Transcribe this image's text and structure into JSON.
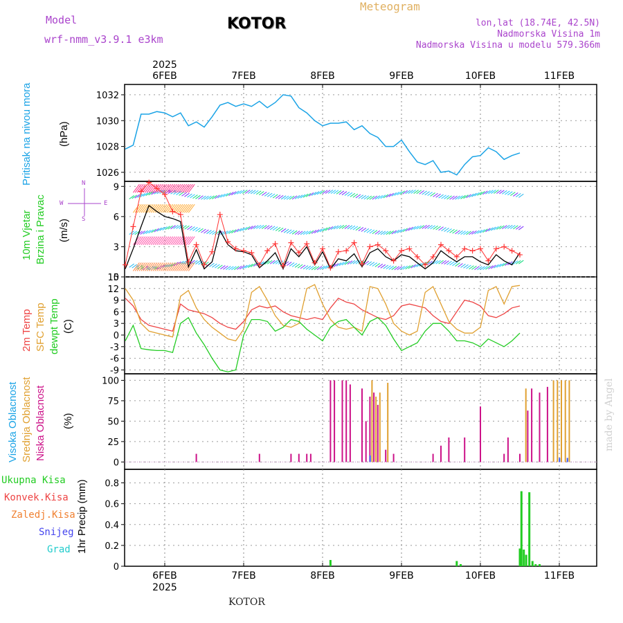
{
  "header": {
    "model_label": "Model",
    "model_name": "wrf-nmm_v3.9.1 e3km",
    "station": "KOTOR",
    "meteogram": "Meteogram",
    "lonlat": "lon,lat (18.74E, 42.5N)",
    "elev": "Nadmorska Visina 1m",
    "elev_model": "Nadmorska Visina u modelu 579.366m",
    "footer_station": "KOTOR",
    "credit": "made by Angel"
  },
  "colors": {
    "pressure": "#1aa3e6",
    "wind_mean": "#000000",
    "gust": "#ff3333",
    "t2m": "#ee4444",
    "sfc": "#e0a030",
    "dew": "#22cc22",
    "low_cloud": "#cc1188",
    "mid_cloud": "#e0a030",
    "high_cloud": "#3355ff",
    "precip": "#22cc22"
  },
  "axes": {
    "year": "2025",
    "dates": [
      "6FEB",
      "7FEB",
      "8FEB",
      "9FEB",
      "10FEB",
      "11FEB"
    ]
  },
  "panels": {
    "pressure": {
      "label": "Pritisak na nivou mora",
      "unit": "(hPa)",
      "ticks": [
        "1026",
        "1028",
        "1030",
        "1032"
      ]
    },
    "wind": {
      "label1": "10m Vjetar",
      "label2": "Brzina i Pravac",
      "unit": "(m/s)",
      "ticks": [
        "0",
        "3",
        "6",
        "9"
      ],
      "compass": {
        "n": "N",
        "s": "S",
        "e": "E",
        "w": "W"
      }
    },
    "temp": {
      "label1": "2m Temp",
      "label2": "SFC Temp",
      "label3": "dewpt Temp",
      "unit": "(C)",
      "ticks": [
        "-9",
        "-6",
        "-3",
        "0",
        "3",
        "6",
        "9",
        "12",
        "15"
      ]
    },
    "cloud": {
      "label1": "Visoka Oblacnost",
      "label2": "Srednja Oblacnost",
      "label3": "Niska Oblacnost",
      "unit": "(%)",
      "ticks": [
        "0",
        "25",
        "50",
        "75",
        "100"
      ]
    },
    "precip": {
      "labels": [
        "Ukupna Kisa",
        "Konvek.Kisa",
        "Zaledj.Kisa",
        "Snijeg",
        "Grad"
      ],
      "unit": "1hr Precip (mm)",
      "ticks": [
        "0",
        "0.2",
        "0.4",
        "0.6",
        "0.8"
      ]
    }
  },
  "chart_data": [
    {
      "type": "line",
      "title": "Pritisak na nivou mora",
      "ylabel": "(hPa)",
      "ylim": [
        1025.3,
        1032.8
      ],
      "x_unit": "days from 5FEB 00UTC",
      "series": [
        {
          "name": "Pritisak na nivou mora",
          "x": [
            0.5,
            0.6,
            0.7,
            0.8,
            0.9,
            1.0,
            1.1,
            1.2,
            1.3,
            1.4,
            1.5,
            1.6,
            1.7,
            1.8,
            1.9,
            2.0,
            2.1,
            2.2,
            2.3,
            2.4,
            2.5,
            2.6,
            2.7,
            2.8,
            2.9,
            3.0,
            3.1,
            3.2,
            3.3,
            3.4,
            3.5,
            3.6,
            3.7,
            3.8,
            3.9,
            4.0,
            4.1,
            4.2,
            4.3,
            4.4,
            4.5,
            4.6,
            4.7,
            4.8,
            4.9,
            5.0,
            5.1,
            5.2,
            5.3,
            5.4,
            5.5
          ],
          "values": [
            1027.8,
            1028.1,
            1030.5,
            1030.5,
            1030.7,
            1030.6,
            1030.3,
            1030.6,
            1029.6,
            1029.9,
            1029.5,
            1030.3,
            1031.2,
            1031.4,
            1031.1,
            1031.3,
            1031.1,
            1031.5,
            1031.0,
            1031.4,
            1032.0,
            1031.9,
            1031.0,
            1030.6,
            1030.0,
            1029.6,
            1029.8,
            1029.8,
            1029.9,
            1029.3,
            1029.6,
            1029.0,
            1028.7,
            1028.0,
            1028.0,
            1028.5,
            1027.6,
            1026.8,
            1026.6,
            1026.9,
            1026.0,
            1026.1,
            1025.8,
            1026.6,
            1027.2,
            1027.3,
            1027.9,
            1027.6,
            1027.0,
            1027.3,
            1027.5
          ]
        }
      ]
    },
    {
      "type": "line",
      "title": "10m Vjetar Brzina i Pravac",
      "ylabel": "(m/s)",
      "ylim": [
        0,
        9.5
      ],
      "series": [
        {
          "name": "mean",
          "x": [
            0.5,
            0.6,
            0.7,
            0.8,
            0.9,
            1.0,
            1.1,
            1.2,
            1.3,
            1.4,
            1.5,
            1.6,
            1.7,
            1.8,
            1.9,
            2.0,
            2.1,
            2.2,
            2.3,
            2.4,
            2.5,
            2.6,
            2.7,
            2.8,
            2.9,
            3.0,
            3.1,
            3.2,
            3.3,
            3.4,
            3.5,
            3.6,
            3.7,
            3.8,
            3.9,
            4.0,
            4.1,
            4.2,
            4.3,
            4.4,
            4.5,
            4.6,
            4.7,
            4.8,
            4.9,
            5.0,
            5.1,
            5.2,
            5.3,
            5.4,
            5.5
          ],
          "values": [
            0.8,
            2.8,
            5.0,
            7.1,
            6.5,
            6.0,
            5.8,
            5.5,
            1.0,
            2.7,
            0.8,
            1.5,
            4.6,
            3.2,
            2.6,
            2.5,
            2.2,
            0.9,
            1.6,
            2.4,
            0.8,
            2.8,
            2.0,
            3.0,
            1.2,
            2.5,
            0.8,
            1.8,
            1.6,
            2.3,
            1.0,
            2.4,
            2.8,
            2.0,
            1.6,
            2.2,
            2.0,
            1.4,
            0.8,
            1.4,
            2.6,
            2.0,
            1.5,
            2.0,
            2.0,
            1.5,
            1.2,
            2.2,
            1.6,
            1.2,
            2.4
          ]
        },
        {
          "name": "gust",
          "x": [
            0.5,
            0.6,
            0.7,
            0.8,
            0.9,
            1.0,
            1.1,
            1.2,
            1.3,
            1.4,
            1.5,
            1.6,
            1.7,
            1.8,
            1.9,
            2.0,
            2.1,
            2.2,
            2.3,
            2.4,
            2.5,
            2.6,
            2.7,
            2.8,
            2.9,
            3.0,
            3.1,
            3.2,
            3.3,
            3.4,
            3.5,
            3.6,
            3.7,
            3.8,
            3.9,
            4.0,
            4.1,
            4.2,
            4.3,
            4.4,
            4.5,
            4.6,
            4.7,
            4.8,
            4.9,
            5.0,
            5.1,
            5.2,
            5.3,
            5.4,
            5.5
          ],
          "values": [
            1.2,
            5.0,
            8.5,
            9.4,
            8.8,
            8.2,
            6.5,
            6.2,
            1.5,
            3.2,
            1.2,
            2.5,
            6.2,
            3.5,
            2.8,
            2.6,
            2.4,
            1.2,
            2.6,
            3.3,
            1.1,
            3.4,
            2.4,
            3.3,
            1.4,
            2.8,
            0.9,
            2.5,
            2.6,
            3.4,
            1.3,
            3.0,
            3.2,
            2.6,
            1.6,
            2.6,
            2.8,
            2.0,
            1.2,
            2.0,
            3.2,
            2.6,
            2.0,
            2.8,
            2.6,
            2.8,
            1.6,
            2.8,
            3.0,
            2.6,
            2.2
          ]
        }
      ]
    },
    {
      "type": "line",
      "title": "2m Temp / SFC Temp / dewpt Temp",
      "ylabel": "(C)",
      "ylim": [
        -10,
        15
      ],
      "x": [
        0.5,
        0.6,
        0.7,
        0.8,
        0.9,
        1.0,
        1.1,
        1.2,
        1.3,
        1.4,
        1.5,
        1.6,
        1.7,
        1.8,
        1.9,
        2.0,
        2.1,
        2.2,
        2.3,
        2.4,
        2.5,
        2.6,
        2.7,
        2.8,
        2.9,
        3.0,
        3.1,
        3.2,
        3.3,
        3.4,
        3.5,
        3.6,
        3.7,
        3.8,
        3.9,
        4.0,
        4.1,
        4.2,
        4.3,
        4.4,
        4.5,
        4.6,
        4.7,
        4.8,
        4.9,
        5.0,
        5.1,
        5.2,
        5.3,
        5.4,
        5.5
      ],
      "series": [
        {
          "name": "2m Temp",
          "values": [
            9.5,
            7.5,
            4.0,
            2.5,
            2.0,
            1.5,
            1.0,
            8.0,
            6.5,
            6.0,
            5.5,
            4.5,
            3.0,
            2.0,
            1.5,
            3.5,
            6.5,
            7.5,
            7.0,
            7.5,
            6.0,
            5.0,
            4.5,
            4.0,
            4.5,
            4.0,
            7.0,
            9.5,
            8.5,
            8.0,
            6.5,
            5.5,
            4.5,
            4.0,
            5.0,
            7.5,
            8.0,
            7.5,
            7.0,
            5.0,
            3.5,
            3.0,
            6.0,
            9.0,
            8.5,
            7.5,
            5.0,
            4.5,
            5.5,
            7.0,
            7.5
          ]
        },
        {
          "name": "SFC Temp",
          "values": [
            12.0,
            9.0,
            3.0,
            1.0,
            0.5,
            0.0,
            -0.5,
            10.0,
            11.5,
            7.0,
            4.0,
            2.0,
            0.5,
            -1.0,
            -1.5,
            1.5,
            11.0,
            12.5,
            9.0,
            5.0,
            2.5,
            2.0,
            3.0,
            12.0,
            13.0,
            8.0,
            4.0,
            2.0,
            1.5,
            2.0,
            1.0,
            12.5,
            12.0,
            8.0,
            3.0,
            1.0,
            0.0,
            1.0,
            11.0,
            12.5,
            8.0,
            3.5,
            1.5,
            0.5,
            0.5,
            2.0,
            11.5,
            12.5,
            8.0,
            12.5,
            12.8
          ]
        },
        {
          "name": "dewpt Temp",
          "values": [
            -1.5,
            2.5,
            -3.5,
            -3.8,
            -4.0,
            -4.0,
            -4.5,
            3.0,
            4.5,
            0.5,
            -2.5,
            -6.0,
            -9.0,
            -9.5,
            -9.0,
            0.0,
            4.0,
            4.0,
            3.5,
            1.0,
            2.0,
            4.0,
            3.5,
            1.5,
            0.0,
            -1.5,
            2.0,
            3.5,
            4.0,
            2.0,
            0.0,
            3.5,
            4.5,
            2.5,
            -1.0,
            -4.0,
            -3.0,
            -2.0,
            1.0,
            3.0,
            3.0,
            1.0,
            -1.5,
            -1.5,
            -2.0,
            -3.0,
            -1.0,
            -2.0,
            -3.0,
            -1.5,
            0.5
          ]
        }
      ]
    },
    {
      "type": "bar",
      "title": "Visoka / Srednja / Niska Oblacnost",
      "ylabel": "(%)",
      "ylim": [
        0,
        100
      ],
      "series": [
        {
          "name": "Niska Oblacnost",
          "x": [
            1.4,
            2.2,
            2.6,
            2.7,
            2.8,
            2.85,
            3.1,
            3.15,
            3.25,
            3.3,
            3.35,
            3.5,
            3.55,
            3.6,
            3.65,
            3.7,
            3.8,
            3.9,
            4.4,
            4.5,
            4.6,
            4.8,
            5.0,
            5.3,
            5.35,
            5.5,
            5.6,
            5.65,
            5.75,
            5.85
          ],
          "values": [
            10,
            10,
            10,
            10,
            10,
            10,
            100,
            100,
            100,
            100,
            95,
            90,
            50,
            80,
            85,
            70,
            15,
            10,
            10,
            20,
            30,
            30,
            68,
            10,
            30,
            10,
            63,
            90,
            85,
            92
          ]
        },
        {
          "name": "Srednja Oblacnost",
          "x": [
            3.6,
            3.65,
            3.7,
            3.8,
            5.55,
            5.9,
            5.95,
            6.0,
            6.05,
            6.1
          ],
          "values": [
            100,
            80,
            85,
            97,
            90,
            100,
            100,
            100,
            100,
            100
          ]
        },
        {
          "name": "Visoka Oblacnost",
          "x": [
            3.55,
            5.95,
            6.05
          ],
          "values": [
            8,
            5,
            5
          ]
        }
      ]
    },
    {
      "type": "bar",
      "title": "1hr Precip",
      "ylabel": "1hr Precip (mm)",
      "ylim": [
        0,
        0.9
      ],
      "series": [
        {
          "name": "Ukupna Kisa",
          "x": [
            3.1,
            4.7,
            4.75,
            5.5,
            5.52,
            5.55,
            5.58,
            5.62,
            5.66,
            5.7,
            5.75
          ],
          "values": [
            0.06,
            0.05,
            0.02,
            0.17,
            0.72,
            0.16,
            0.11,
            0.71,
            0.05,
            0.02,
            0.02
          ]
        }
      ]
    }
  ]
}
